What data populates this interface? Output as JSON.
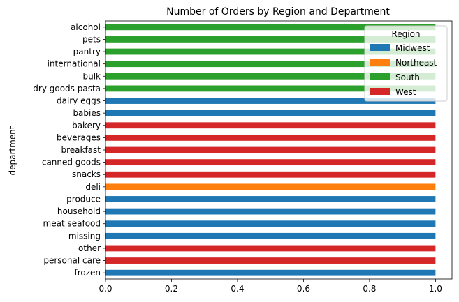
{
  "chart_data": {
    "type": "bar",
    "orientation": "horizontal",
    "stacked": true,
    "title": "Number of Orders by Region and Department",
    "xlabel": "",
    "ylabel": "department",
    "xlim": [
      0,
      1.05
    ],
    "x_ticks": [
      "0.0",
      "0.2",
      "0.4",
      "0.6",
      "0.8",
      "1.0"
    ],
    "grid": false,
    "legend": {
      "title": "Region",
      "position": "top-right"
    },
    "categories": [
      "alcohol",
      "pets",
      "pantry",
      "international",
      "bulk",
      "dry goods pasta",
      "dairy eggs",
      "babies",
      "bakery",
      "beverages",
      "breakfast",
      "canned goods",
      "snacks",
      "deli",
      "produce",
      "household",
      "meat seafood",
      "missing",
      "other",
      "personal care",
      "frozen"
    ],
    "series": [
      {
        "name": "Midwest",
        "color": "#1f77b4",
        "values": [
          0,
          0,
          0,
          0,
          0,
          0,
          1,
          1,
          0,
          0,
          0,
          0,
          0,
          0,
          1,
          1,
          1,
          1,
          0,
          0,
          1
        ]
      },
      {
        "name": "Northeast",
        "color": "#ff7f0e",
        "values": [
          0,
          0,
          0,
          0,
          0,
          0,
          0,
          0,
          0,
          0,
          0,
          0,
          0,
          1,
          0,
          0,
          0,
          0,
          0,
          0,
          0
        ]
      },
      {
        "name": "South",
        "color": "#2ca02c",
        "values": [
          1,
          1,
          1,
          1,
          1,
          1,
          0,
          0,
          0,
          0,
          0,
          0,
          0,
          0,
          0,
          0,
          0,
          0,
          0,
          0,
          0
        ]
      },
      {
        "name": "West",
        "color": "#d62728",
        "values": [
          0,
          0,
          0,
          0,
          0,
          0,
          0,
          0,
          1,
          1,
          1,
          1,
          1,
          0,
          0,
          0,
          0,
          0,
          1,
          1,
          0
        ]
      }
    ]
  }
}
